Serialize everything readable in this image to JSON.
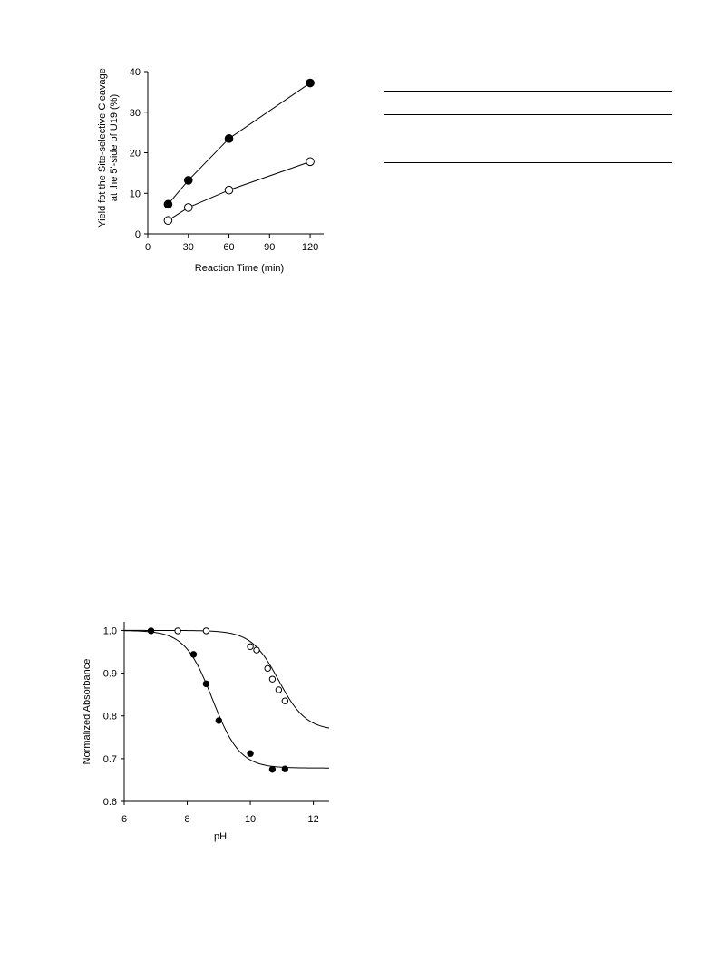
{
  "chart_data": [
    {
      "type": "line",
      "title": "",
      "xlabel": "Reaction Time (min)",
      "ylabel_lines": [
        "Yield fot the Site-selective Cleavage",
        "at the 5'-side of U19 (%)"
      ],
      "xlim": [
        0,
        130
      ],
      "ylim": [
        0,
        40
      ],
      "xticks": [
        0,
        30,
        60,
        90,
        120
      ],
      "yticks": [
        0,
        10,
        20,
        30,
        40
      ],
      "grid": false,
      "legend": "none",
      "series": [
        {
          "marker": "filled-circle",
          "x": [
            15,
            30,
            60,
            120
          ],
          "y": [
            7.3,
            13.2,
            23.5,
            37.2
          ]
        },
        {
          "marker": "open-circle",
          "x": [
            15,
            30,
            60,
            120
          ],
          "y": [
            3.3,
            6.5,
            10.8,
            17.8
          ]
        }
      ]
    },
    {
      "type": "scatter",
      "title": "",
      "xlabel": "pH",
      "ylabel": "Normalized Absorbance",
      "xlim": [
        6,
        12.5
      ],
      "ylim": [
        0.6,
        1.02
      ],
      "xticks": [
        6,
        8,
        10,
        12
      ],
      "yticks": [
        0.6,
        0.7,
        0.8,
        0.9,
        1.0
      ],
      "ytick_labels": [
        "0.6",
        "0.7",
        "0.8",
        "0.9",
        "1.0"
      ],
      "grid": false,
      "legend": "none",
      "series": [
        {
          "marker": "filled-circle",
          "x": [
            6.85,
            8.2,
            8.6,
            9.0,
            10.0,
            10.7,
            11.1
          ],
          "y": [
            0.999,
            0.944,
            0.875,
            0.789,
            0.712,
            0.675,
            0.676
          ],
          "fit": {
            "kind": "sigmoid",
            "top": 1.0,
            "bottom": 0.678,
            "pKa": 8.8
          }
        },
        {
          "marker": "open-circle",
          "x": [
            7.7,
            8.6,
            10.0,
            10.2,
            10.55,
            10.7,
            10.9,
            11.1
          ],
          "y": [
            0.999,
            0.999,
            0.962,
            0.954,
            0.911,
            0.886,
            0.861,
            0.835
          ],
          "fit": {
            "kind": "sigmoid",
            "top": 1.0,
            "bottom": 0.766,
            "pKa": 10.9
          }
        }
      ]
    }
  ]
}
